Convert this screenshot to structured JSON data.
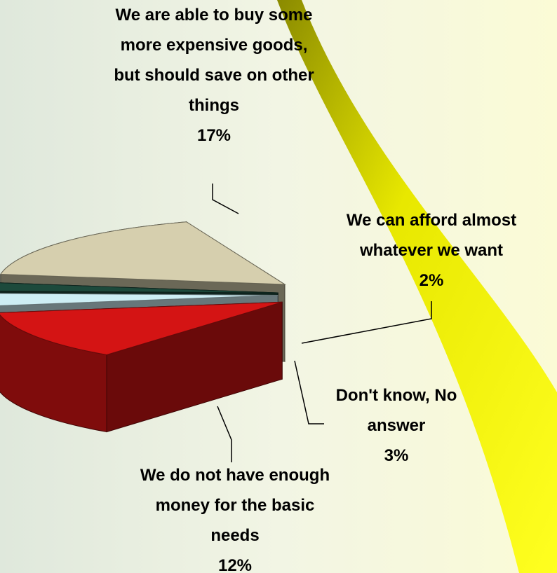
{
  "chart_data": {
    "type": "pie",
    "categories": [
      "We are able to buy some more expensive goods, but should save on other things",
      "We can afford almost whatever we want",
      "Don't know, No answer",
      "We do not have enough money for the basic needs"
    ],
    "values": [
      17,
      2,
      3,
      12
    ],
    "value_labels": [
      "17%",
      "2%",
      "3%",
      "12%"
    ],
    "colors": [
      "#d6cfae",
      "#1d4a3c",
      "#cdeef4",
      "#d41414"
    ]
  }
}
